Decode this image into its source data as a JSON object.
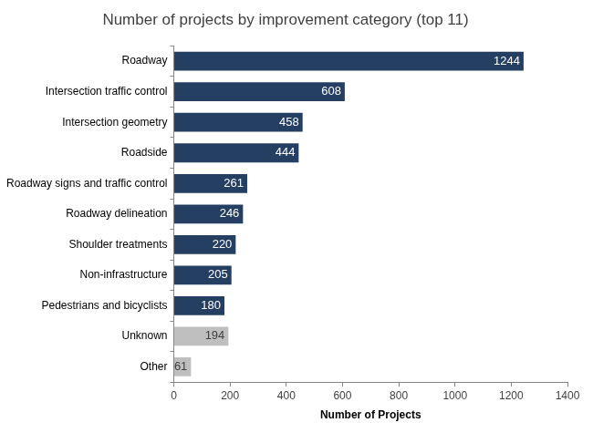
{
  "chart_data": {
    "type": "bar",
    "orientation": "horizontal",
    "title": "Number of projects by improvement category (top 11)",
    "x_label": "Number of Projects",
    "categories": [
      "Roadway",
      "Intersection traffic control",
      "Intersection geometry",
      "Roadside",
      "Roadway signs and traffic control",
      "Roadway delineation",
      "Shoulder treatments",
      "Non-infrastructure",
      "Pedestrians and bicyclists",
      "Unknown",
      "Other"
    ],
    "values": [
      1244,
      608,
      458,
      444,
      261,
      246,
      220,
      205,
      180,
      194,
      61
    ],
    "colors": [
      "#253f63",
      "#253f63",
      "#253f63",
      "#253f63",
      "#253f63",
      "#253f63",
      "#253f63",
      "#253f63",
      "#253f63",
      "#bfbfbf",
      "#bfbfbf"
    ],
    "xlim": [
      0,
      1400
    ],
    "xticks": [
      0,
      200,
      400,
      600,
      800,
      1000,
      1200,
      1400
    ],
    "grid": false,
    "data_labels": true
  }
}
